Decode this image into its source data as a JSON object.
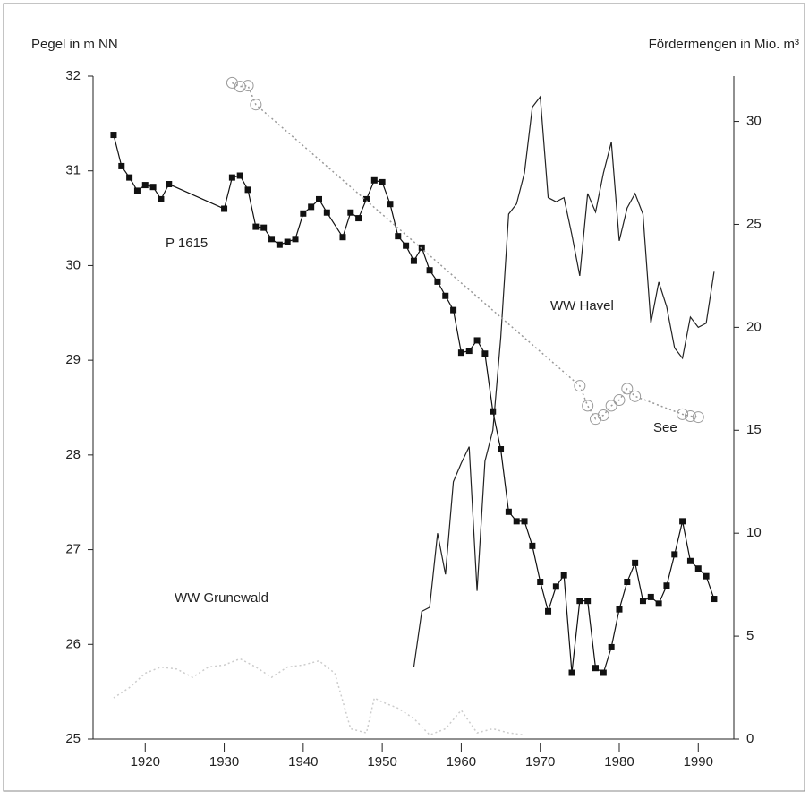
{
  "chart_data": {
    "type": "line",
    "ylabel": "Pegel in m NN",
    "y2label": "Fördermengen in Mio. m³",
    "xlim": [
      1913.4,
      1994.5
    ],
    "xticks": [
      1920,
      1930,
      1940,
      1950,
      1960,
      1970,
      1980,
      1990
    ],
    "ylim": [
      25,
      32
    ],
    "yticks": [
      25,
      26,
      27,
      28,
      29,
      30,
      31,
      32
    ],
    "y2lim": [
      0,
      32.2
    ],
    "y2ticks": [
      0,
      5,
      10,
      15,
      20,
      25,
      30
    ],
    "series": [
      {
        "name": "P 1615",
        "color": "#111111",
        "marker": "square",
        "line_style": "solid",
        "axis": "y",
        "x": [
          1916,
          1917,
          1918,
          1919,
          1920,
          1921,
          1922,
          1923,
          1930,
          1931,
          1932,
          1933,
          1934,
          1935,
          1936,
          1937,
          1938,
          1939,
          1940,
          1941,
          1942,
          1943,
          1945,
          1946,
          1947,
          1948,
          1949,
          1950,
          1951,
          1952,
          1953,
          1954,
          1955,
          1956,
          1957,
          1958,
          1959,
          1960,
          1961,
          1962,
          1963,
          1964,
          1965,
          1966,
          1967,
          1968,
          1969,
          1970,
          1971,
          1972,
          1973,
          1974,
          1975,
          1976,
          1977,
          1978,
          1979,
          1980,
          1981,
          1982,
          1983,
          1984,
          1985,
          1986,
          1987,
          1988,
          1989,
          1990,
          1991,
          1992
        ],
        "values": [
          31.38,
          31.05,
          30.93,
          30.79,
          30.85,
          30.83,
          30.7,
          30.86,
          30.6,
          30.93,
          30.95,
          30.8,
          30.41,
          30.4,
          30.28,
          30.22,
          30.25,
          30.28,
          30.55,
          30.62,
          30.7,
          30.56,
          30.3,
          30.56,
          30.5,
          30.7,
          30.9,
          30.88,
          30.65,
          30.31,
          30.21,
          30.05,
          30.19,
          29.95,
          29.83,
          29.68,
          29.53,
          29.08,
          29.1,
          29.21,
          29.07,
          28.46,
          28.06,
          27.4,
          27.3,
          27.3,
          27.04,
          26.66,
          26.35,
          26.61,
          26.73,
          25.7,
          26.46,
          26.46,
          25.75,
          25.7,
          25.97,
          26.37,
          26.66,
          26.86,
          26.46,
          26.5,
          26.43,
          26.62,
          26.95,
          27.3,
          26.88,
          26.8,
          26.72,
          26.48
        ]
      },
      {
        "name": "WW Havel",
        "color": "#222222",
        "marker": "none",
        "line_style": "solid",
        "axis": "y2",
        "x": [
          1954,
          1955,
          1956,
          1957,
          1958,
          1959,
          1960,
          1961,
          1962,
          1963,
          1964,
          1965,
          1966,
          1967,
          1968,
          1969,
          1970,
          1971,
          1972,
          1973,
          1974,
          1975,
          1976,
          1977,
          1978,
          1979,
          1980,
          1981,
          1982,
          1983,
          1984,
          1985,
          1986,
          1987,
          1988,
          1989,
          1990,
          1991,
          1992
        ],
        "values": [
          3.5,
          6.2,
          6.4,
          10,
          8,
          12.5,
          13.4,
          14.2,
          7.2,
          13.5,
          15,
          19.5,
          25.5,
          26,
          27.5,
          30.7,
          31.2,
          26.3,
          26.1,
          26.3,
          24.5,
          22.5,
          26.5,
          25.6,
          27.5,
          29,
          24.2,
          25.8,
          26.5,
          25.5,
          20.2,
          22.2,
          21,
          19,
          18.5,
          20.5,
          20,
          20.2,
          22.7
        ]
      },
      {
        "name": "See",
        "color": "#999999",
        "marker": "circle",
        "line_style": "dotted",
        "axis": "y",
        "x": [
          1931,
          1932,
          1933,
          1934,
          1975,
          1976,
          1977,
          1978,
          1979,
          1980,
          1981,
          1982,
          1988,
          1989,
          1990
        ],
        "values": [
          31.93,
          31.89,
          31.9,
          31.7,
          28.73,
          28.52,
          28.38,
          28.42,
          28.52,
          28.58,
          28.7,
          28.62,
          28.43,
          28.41,
          28.4
        ]
      },
      {
        "name": "WW Grunewald",
        "color": "#cccccc",
        "marker": "none",
        "line_style": "dotted",
        "axis": "y2",
        "x": [
          1916,
          1918,
          1920,
          1922,
          1924,
          1926,
          1928,
          1930,
          1932,
          1934,
          1936,
          1938,
          1940,
          1942,
          1944,
          1946,
          1948,
          1949,
          1950,
          1952,
          1954,
          1956,
          1958,
          1960,
          1962,
          1964,
          1966,
          1968
        ],
        "values": [
          2,
          2.5,
          3.2,
          3.5,
          3.4,
          3,
          3.5,
          3.6,
          3.9,
          3.5,
          3,
          3.5,
          3.6,
          3.8,
          3.2,
          0.5,
          0.3,
          2,
          1.8,
          1.5,
          1,
          0.2,
          0.5,
          1.4,
          0.3,
          0.5,
          0.3,
          0.2
        ]
      }
    ]
  }
}
